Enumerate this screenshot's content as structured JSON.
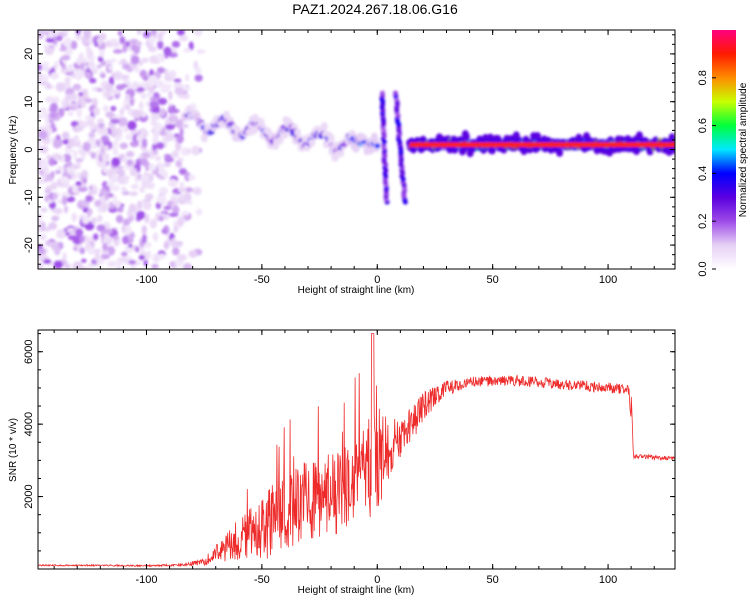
{
  "title": "PAZ1.2024.267.18.06.G16",
  "chart_data": [
    {
      "type": "heatmap",
      "title": "",
      "xlabel": "Height of straight line (km)",
      "ylabel": "Frequency (Hz)",
      "xlim": [
        -147,
        129
      ],
      "ylim": [
        -25,
        25
      ],
      "xticks": [
        -100,
        -50,
        0,
        50,
        100
      ],
      "yticks": [
        20,
        10,
        0,
        -10,
        -20
      ],
      "colorbar": {
        "label": "Normalized spectral amplitude",
        "range": [
          0,
          1
        ],
        "ticks": [
          "0.0",
          "0.2",
          "0.4",
          "0.6",
          "0.8"
        ],
        "colormap": [
          "#ffffff",
          "#e6d0f5",
          "#9d4be8",
          "#5a00e0",
          "#0000ff",
          "#00e8ff",
          "#00ff3a",
          "#c8ff00",
          "#ff8c00",
          "#ff1a00",
          "#ff0080"
        ]
      },
      "regions": [
        {
          "x_range": [
            -147,
            -75
          ],
          "freq_range": [
            -25,
            25
          ],
          "amplitude": [
            0.0,
            0.15
          ],
          "description": "scattered noise"
        },
        {
          "x_range": [
            -82,
            -10
          ],
          "freq_center": [
            6,
            1
          ],
          "amplitude": [
            0.05,
            0.4
          ]
        },
        {
          "x_range": [
            -12,
            0
          ],
          "freq_center": [
            2,
            1
          ],
          "amplitude": [
            0.1,
            0.5
          ]
        },
        {
          "x_range": [
            2,
            4
          ],
          "freq_range": [
            -11,
            12
          ],
          "amplitude": [
            0.1,
            0.3
          ]
        },
        {
          "x_range": [
            8,
            12
          ],
          "freq_range": [
            -11,
            12
          ],
          "amplitude": [
            0.1,
            0.3
          ]
        },
        {
          "x_range": [
            14,
            129
          ],
          "freq_center": [
            1,
            1
          ],
          "amplitude": [
            0.3,
            0.95
          ]
        }
      ]
    },
    {
      "type": "line",
      "title": "",
      "xlabel": "Height of straight line (km)",
      "ylabel": "SNR (10 * v/v)",
      "xlim": [
        -147,
        129
      ],
      "ylim": [
        0,
        6600
      ],
      "xticks": [
        -100,
        -50,
        0,
        50,
        100
      ],
      "yticks": [
        2000,
        4000,
        6000
      ],
      "color": "#ee2b2b",
      "series": [
        {
          "x": [
            -147,
            -120,
            -100,
            -85,
            -75,
            -68,
            -60,
            -50,
            -40,
            -30,
            -20,
            -10,
            -5,
            0,
            5,
            10,
            15,
            20,
            30,
            40,
            50,
            60,
            70,
            80,
            90,
            100,
            109,
            111,
            115,
            129
          ],
          "values": [
            100,
            100,
            90,
            110,
            200,
            500,
            800,
            1100,
            1600,
            1900,
            2100,
            2400,
            2700,
            3000,
            3300,
            3600,
            4000,
            4500,
            5000,
            5150,
            5200,
            5200,
            5150,
            5100,
            5050,
            5000,
            4950,
            3100,
            3100,
            3050
          ],
          "noise": [
            20,
            20,
            20,
            30,
            100,
            300,
            600,
            900,
            1100,
            1200,
            1200,
            1300,
            1400,
            1500,
            800,
            600,
            500,
            400,
            200,
            150,
            150,
            150,
            150,
            150,
            150,
            150,
            150,
            60,
            60,
            60
          ]
        }
      ]
    }
  ]
}
